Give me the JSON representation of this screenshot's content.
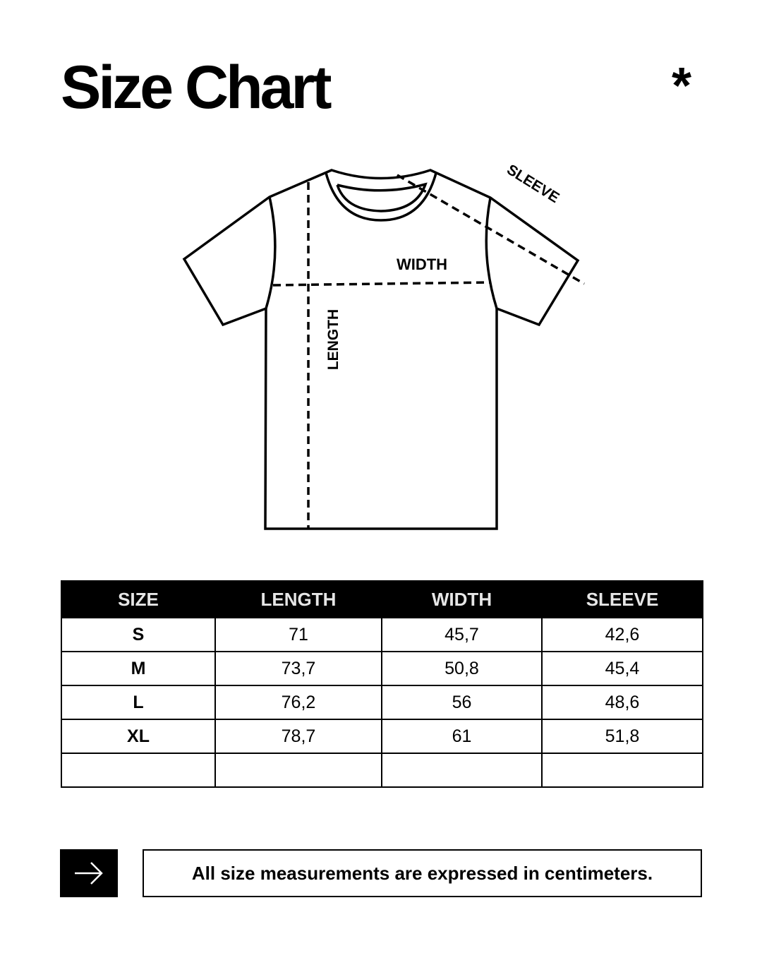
{
  "title": "Size Chart",
  "decoration": "asterisk",
  "diagram": {
    "labels": {
      "width": "WIDTH",
      "length": "LENGTH",
      "sleeve": "SLEEVE"
    }
  },
  "table": {
    "headers": [
      "SIZE",
      "LENGTH",
      "WIDTH",
      "SLEEVE"
    ],
    "rows": [
      [
        "S",
        "71",
        "45,7",
        "42,6"
      ],
      [
        "M",
        "73,7",
        "50,8",
        "45,4"
      ],
      [
        "L",
        "76,2",
        "56",
        "48,6"
      ],
      [
        "XL",
        "78,7",
        "61",
        "51,8"
      ],
      [
        "",
        "",
        "",
        ""
      ]
    ]
  },
  "footer": {
    "icon": "arrow-right-icon",
    "note": "All size measurements are expressed in centimeters."
  }
}
